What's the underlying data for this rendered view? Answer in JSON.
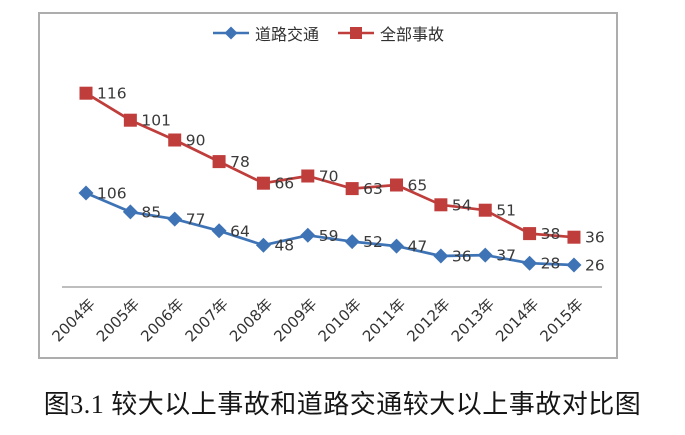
{
  "caption": "图3.1 较大以上事故和道路交通较大以上事故对比图",
  "chart_data": {
    "type": "line",
    "title": "",
    "xlabel": "",
    "ylabel": "",
    "grid": false,
    "legend_position": "top-center",
    "y_axis_labels_visible": false,
    "axis_color": "#a8a8a8",
    "label_color": "#3a3a3a",
    "frame_border_color": "#adadad",
    "categories": [
      "2004年",
      "2005年",
      "2006年",
      "2007年",
      "2008年",
      "2009年",
      "2010年",
      "2011年",
      "2012年",
      "2013年",
      "2014年",
      "2015年"
    ],
    "series": [
      {
        "name": "道路交通",
        "marker": "diamond",
        "color": "#3e74b6",
        "values": [
          106,
          85,
          77,
          64,
          48,
          59,
          52,
          47,
          36,
          37,
          28,
          26
        ]
      },
      {
        "name": "全部事故",
        "marker": "square",
        "color": "#bf3d3b",
        "values": [
          116,
          101,
          90,
          78,
          66,
          70,
          63,
          65,
          54,
          51,
          38,
          36
        ]
      }
    ]
  }
}
